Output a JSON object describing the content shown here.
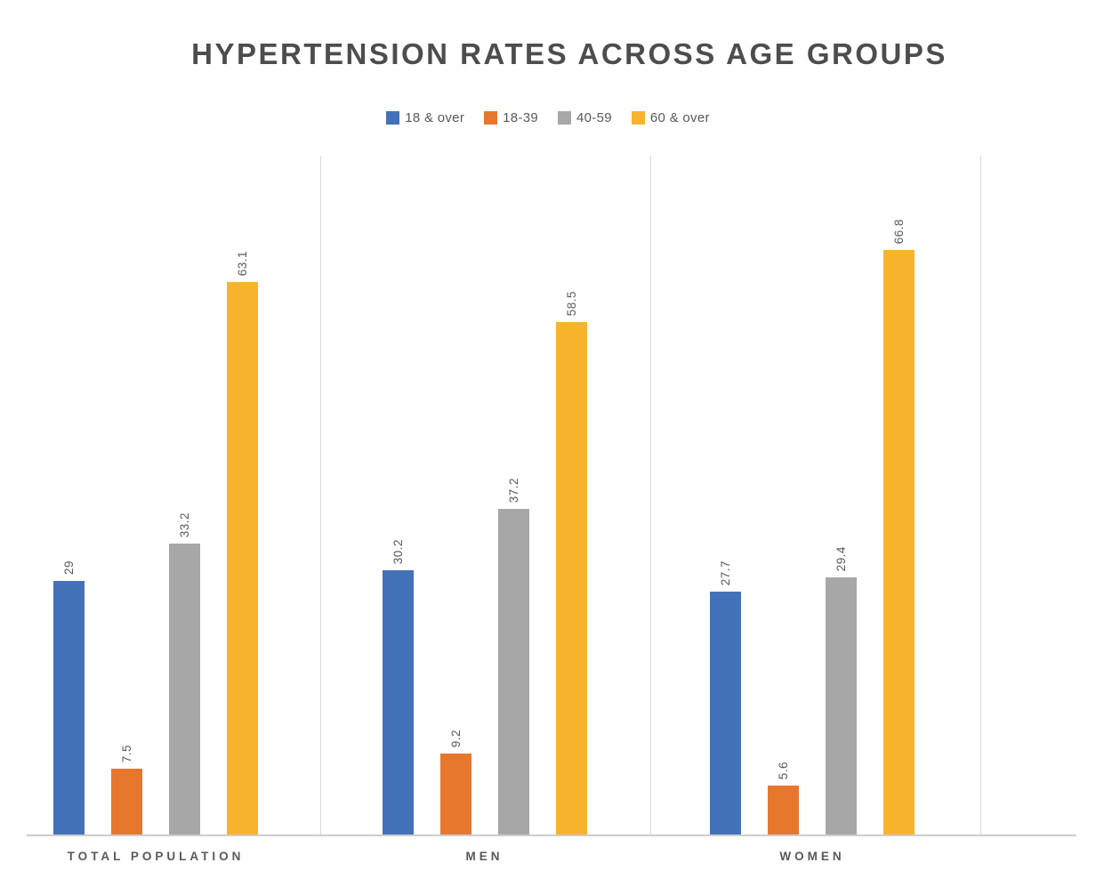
{
  "page": {
    "background": "#FFFFFF"
  },
  "chart_data": {
    "type": "bar",
    "title": "HYPERTENSION RATES ACROSS AGE GROUPS",
    "categories": [
      "TOTAL POPULATION",
      "MEN",
      "WOMEN"
    ],
    "series": [
      {
        "name": "18 & over",
        "color": "#4472B8",
        "values": [
          29,
          30.2,
          27.7
        ]
      },
      {
        "name": "18-39",
        "color": "#E8772E",
        "values": [
          7.5,
          9.2,
          5.6
        ]
      },
      {
        "name": "40-59",
        "color": "#A7A7A7",
        "values": [
          33.2,
          37.2,
          29.4
        ]
      },
      {
        "name": "60 & over",
        "color": "#F7B42C",
        "values": [
          63.1,
          58.5,
          66.8
        ]
      }
    ],
    "xlabel": "",
    "ylabel": "",
    "ylim": [
      0,
      77.5
    ],
    "legend_position": "top",
    "value_labels_rotated": true,
    "grid": "vertical category separators only, no y-axis ticks or labels",
    "colors": {
      "title_text": "#4D4D4D",
      "label_text": "#595959",
      "gridline": "#D9D9D9",
      "axis_line": "#CDCDCD"
    }
  }
}
